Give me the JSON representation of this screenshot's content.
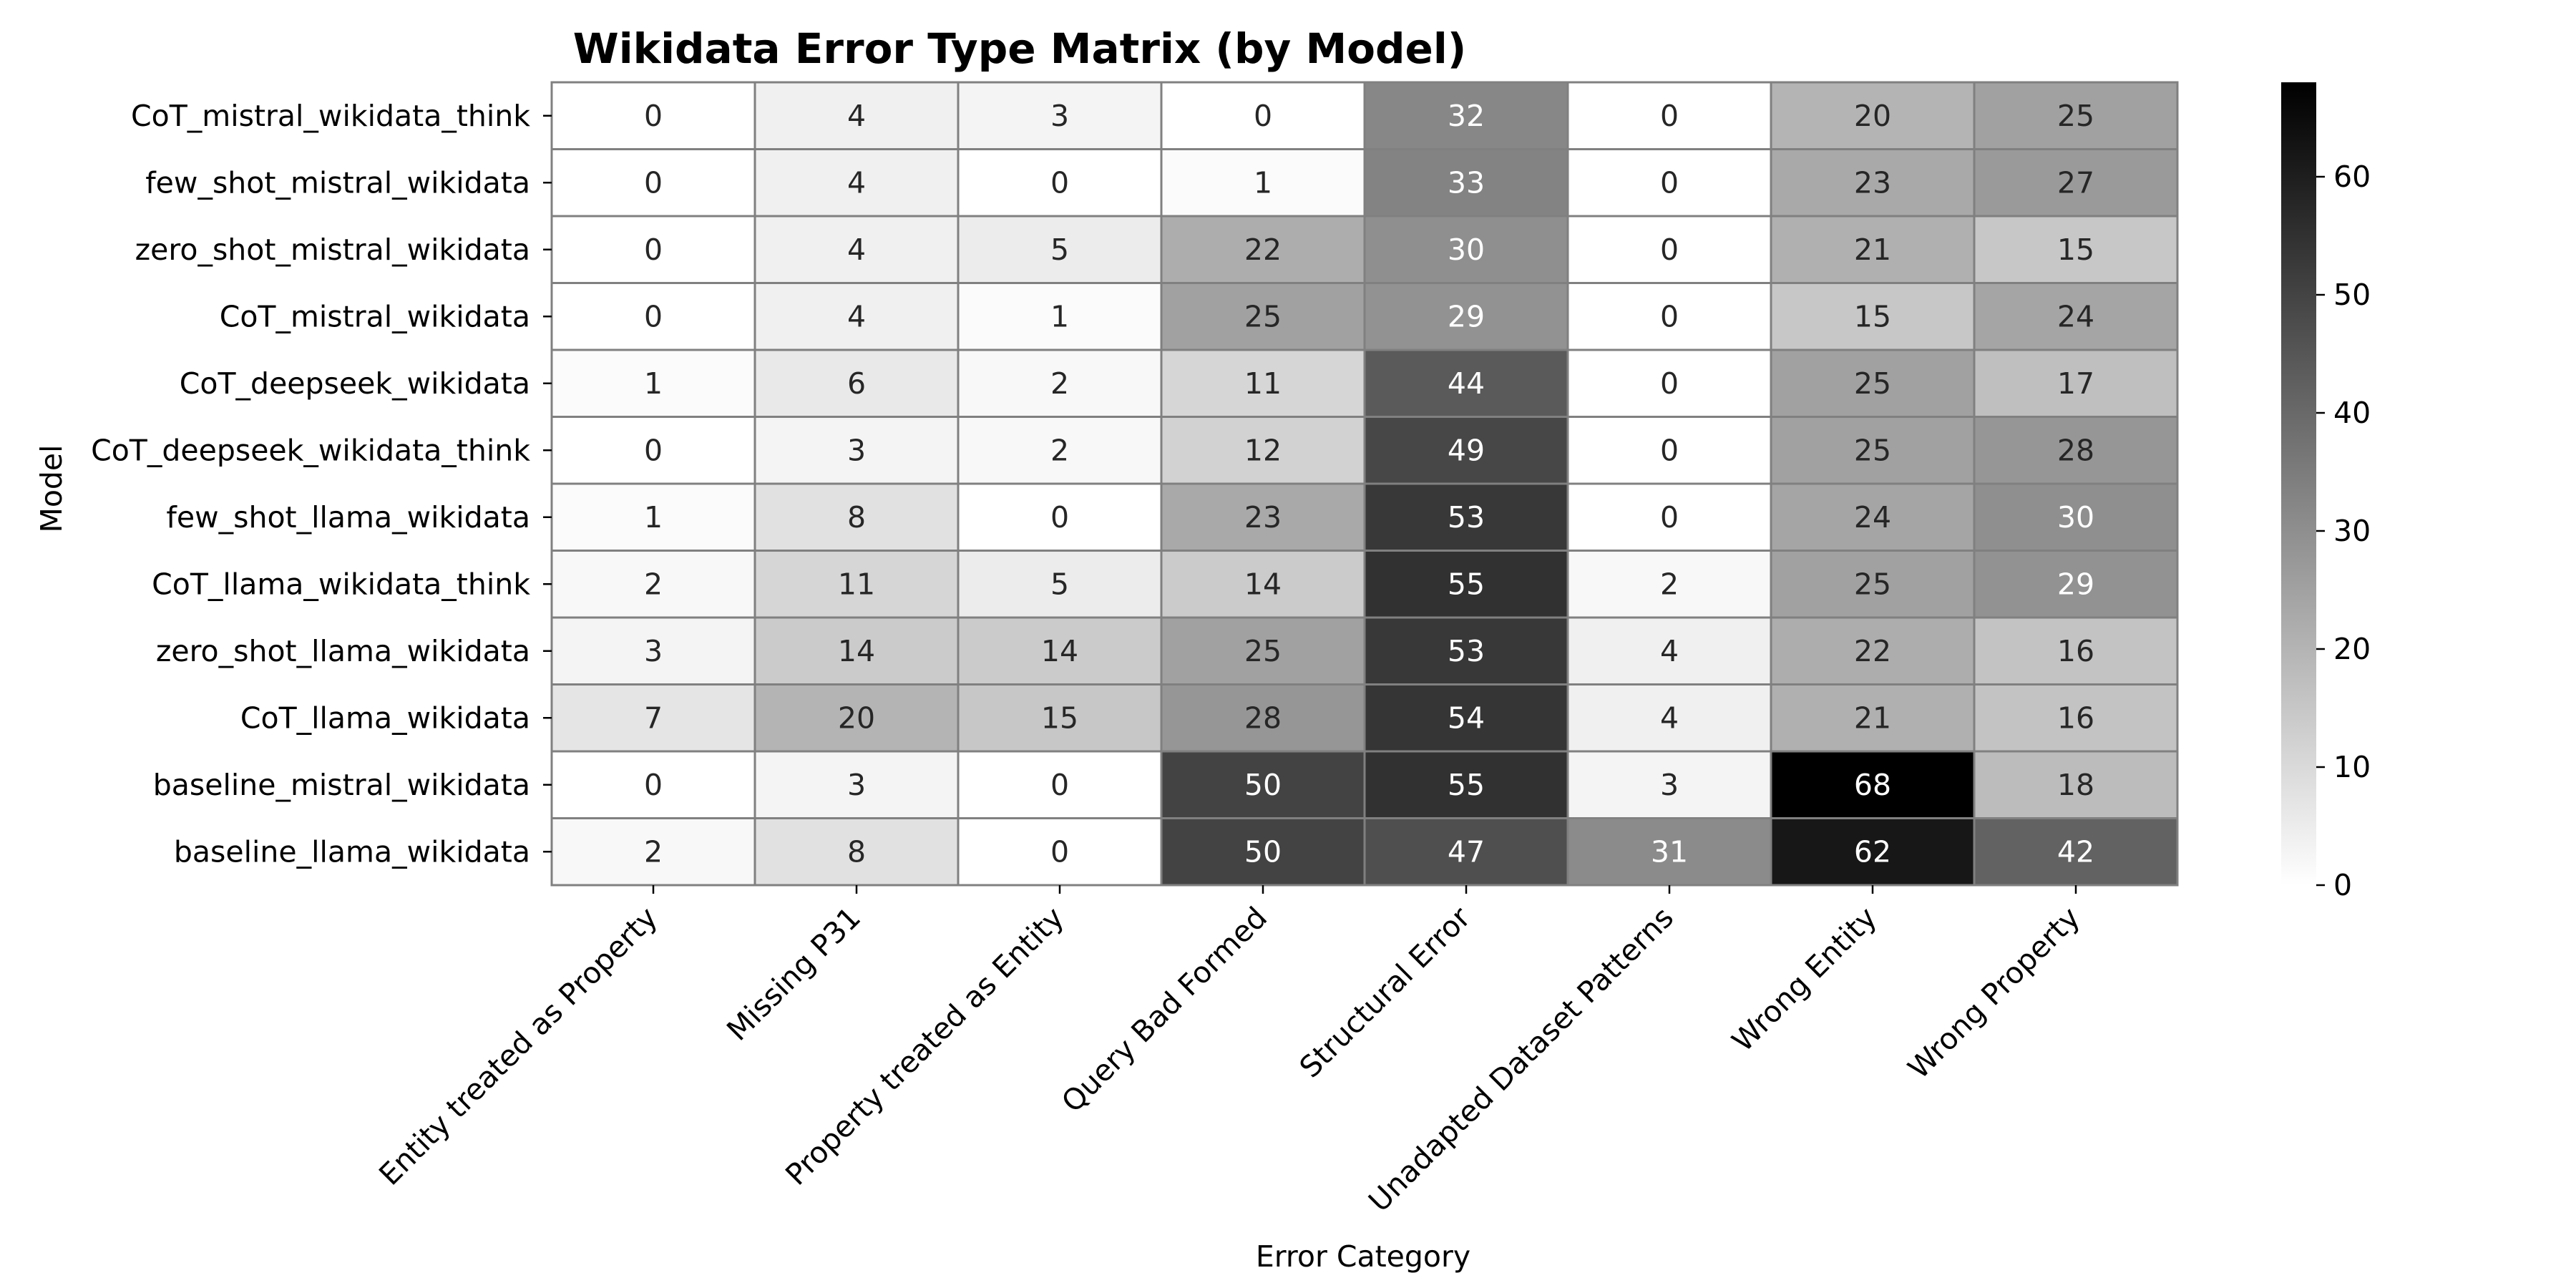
{
  "chart_data": {
    "type": "heatmap",
    "title": "Wikidata Error Type Matrix (by Model)",
    "xlabel": "Error Category",
    "ylabel": "Model",
    "x_categories": [
      "Entity treated as Property",
      "Missing P31",
      "Property treated as Entity",
      "Query Bad Formed",
      "Structural Error",
      "Unadapted Dataset Patterns",
      "Wrong Entity",
      "Wrong Property"
    ],
    "y_categories": [
      "CoT_mistral_wikidata_think",
      "few_shot_mistral_wikidata",
      "zero_shot_mistral_wikidata",
      "CoT_mistral_wikidata",
      "CoT_deepseek_wikidata",
      "CoT_deepseek_wikidata_think",
      "few_shot_llama_wikidata",
      "CoT_llama_wikidata_think",
      "zero_shot_llama_wikidata",
      "CoT_llama_wikidata",
      "baseline_mistral_wikidata",
      "baseline_llama_wikidata"
    ],
    "values": [
      [
        0,
        4,
        3,
        0,
        32,
        0,
        20,
        25
      ],
      [
        0,
        4,
        0,
        1,
        33,
        0,
        23,
        27
      ],
      [
        0,
        4,
        5,
        22,
        30,
        0,
        21,
        15
      ],
      [
        0,
        4,
        1,
        25,
        29,
        0,
        15,
        24
      ],
      [
        1,
        6,
        2,
        11,
        44,
        0,
        25,
        17
      ],
      [
        0,
        3,
        2,
        12,
        49,
        0,
        25,
        28
      ],
      [
        1,
        8,
        0,
        23,
        53,
        0,
        24,
        30
      ],
      [
        2,
        11,
        5,
        14,
        55,
        2,
        25,
        29
      ],
      [
        3,
        14,
        14,
        25,
        53,
        4,
        22,
        16
      ],
      [
        7,
        20,
        15,
        28,
        54,
        4,
        21,
        16
      ],
      [
        0,
        3,
        0,
        50,
        55,
        3,
        68,
        18
      ],
      [
        2,
        8,
        0,
        50,
        47,
        31,
        62,
        42
      ]
    ],
    "colorbar": {
      "min": 0,
      "max": 68,
      "ticks": [
        0,
        10,
        20,
        30,
        40,
        50,
        60
      ],
      "colormap": "greys"
    },
    "grid": true,
    "cell_edge_color": "#808080"
  }
}
